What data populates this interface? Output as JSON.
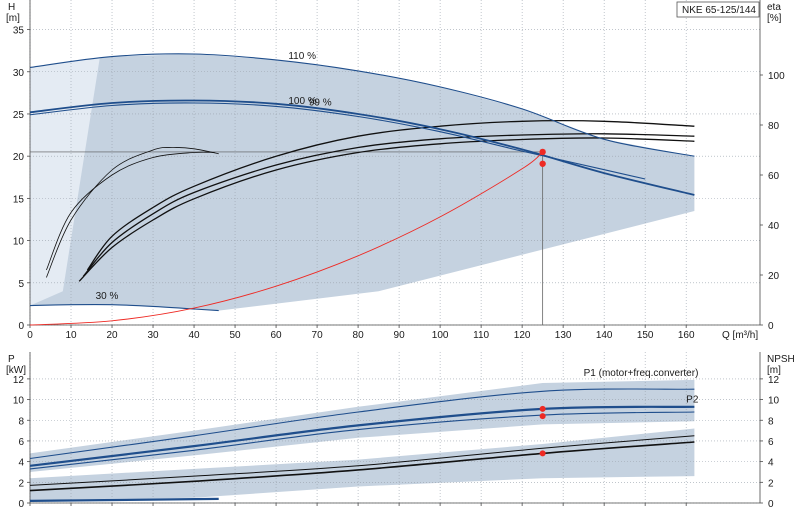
{
  "model_label": "NKE 65-125/144",
  "chart_data": [
    {
      "type": "line",
      "panel": "head-efficiency",
      "x_label": "Q [m³/h]",
      "y_label_left": [
        "H",
        "[m]"
      ],
      "y_label_right": [
        "eta",
        "[%]"
      ],
      "x_ticks": [
        0,
        10,
        20,
        30,
        40,
        50,
        60,
        70,
        80,
        90,
        100,
        110,
        120,
        130,
        140,
        150,
        160
      ],
      "y_left_ticks": [
        0,
        5,
        10,
        15,
        20,
        25,
        30,
        35
      ],
      "y_right_ticks": [
        0,
        20,
        40,
        60,
        80,
        100
      ],
      "xlim": [
        0,
        178
      ],
      "ylim_left": [
        0,
        38.5
      ],
      "ylim_right": [
        0,
        130
      ],
      "grid": true,
      "speed_labels": [
        {
          "text": "110 %",
          "x": 63,
          "y": 31.5
        },
        {
          "text": "100 %",
          "x": 63,
          "y": 26.2
        },
        {
          "text": "99 %",
          "x": 68,
          "y": 26.0
        },
        {
          "text": "30 %",
          "x": 16,
          "y": 3.1
        }
      ],
      "head_curves": [
        {
          "name": "110 %",
          "x": [
            0,
            20,
            40,
            60,
            80,
            100,
            120,
            140,
            162
          ],
          "y": [
            30.5,
            31.8,
            32.1,
            31.4,
            30.1,
            28.2,
            25.6,
            22.0,
            20.0
          ]
        },
        {
          "name": "100 %",
          "x": [
            0,
            20,
            40,
            60,
            80,
            100,
            120,
            140,
            162
          ],
          "y": [
            25.2,
            26.3,
            26.6,
            26.2,
            25.0,
            23.2,
            20.8,
            18.0,
            15.4
          ]
        },
        {
          "name": "99 %",
          "x": [
            0,
            20,
            40,
            60,
            80,
            100,
            120,
            140,
            150
          ],
          "y": [
            24.9,
            26.0,
            26.3,
            25.9,
            24.7,
            22.9,
            20.6,
            18.4,
            17.3
          ]
        },
        {
          "name": "30 %",
          "x": [
            0,
            10,
            20,
            30,
            40,
            46
          ],
          "y": [
            2.3,
            2.4,
            2.4,
            2.2,
            1.9,
            1.7
          ]
        }
      ],
      "efficiency_curves": [
        {
          "x": [
            12,
            20,
            30,
            40,
            60,
            80,
            100,
            120,
            140,
            162
          ],
          "y": [
            17.5,
            31.0,
            42.0,
            50.5,
            62.0,
            69.0,
            72.5,
            74.2,
            74.8,
            73.5
          ]
        },
        {
          "x": [
            13,
            20,
            30,
            40,
            60,
            80,
            100,
            120,
            140,
            162
          ],
          "y": [
            19.5,
            33.0,
            44.5,
            53.0,
            64.0,
            71.0,
            74.5,
            76.0,
            76.5,
            75.5
          ]
        },
        {
          "x": [
            14,
            20,
            30,
            40,
            60,
            80,
            100,
            120,
            140,
            162
          ],
          "y": [
            22.0,
            35.5,
            47.0,
            55.5,
            67.5,
            75.5,
            79.5,
            81.5,
            81.5,
            79.5
          ]
        },
        {
          "x": [
            4,
            10,
            20,
            30,
            35,
            40,
            46
          ],
          "y": [
            19.0,
            42.0,
            62.0,
            70.0,
            71.0,
            70.5,
            68.5
          ]
        },
        {
          "x": [
            4,
            10,
            20,
            30,
            40,
            45
          ],
          "y": [
            22.0,
            45.0,
            60.0,
            67.0,
            69.0,
            69.0
          ]
        }
      ],
      "system_curve": {
        "x": [
          0,
          20,
          40,
          60,
          80,
          100,
          120,
          125
        ],
        "y": [
          0,
          0.5,
          2.0,
          4.6,
          8.2,
          12.8,
          18.5,
          20.5
        ]
      },
      "operating_points": [
        {
          "x": 125,
          "y": 20.5
        },
        {
          "x": 125,
          "y": 19.1
        }
      ],
      "duty_guides": {
        "x": 125,
        "y": 20.5
      }
    },
    {
      "type": "line",
      "panel": "power-npsh",
      "y_label_left": [
        "P",
        "[kW]"
      ],
      "y_label_right": [
        "NPSH",
        "[m]"
      ],
      "x_ticks": [
        0,
        10,
        20,
        30,
        40,
        50,
        60,
        70,
        80,
        90,
        100,
        110,
        120,
        130,
        140,
        150,
        160
      ],
      "y_left_ticks": [
        0,
        2,
        4,
        6,
        8,
        10,
        12
      ],
      "y_right_ticks": [
        0,
        2,
        4,
        6,
        8,
        10,
        12
      ],
      "xlim": [
        0,
        178
      ],
      "ylim": [
        0,
        14.6
      ],
      "grid": true,
      "series_labels": [
        {
          "text": "P1 (motor+freq.converter)",
          "x": 135,
          "y": 12.3
        },
        {
          "text": "P2",
          "x": 160,
          "y": 9.7
        }
      ],
      "power_curves": [
        {
          "name": "P1 (motor+freq.converter)",
          "x": [
            0,
            40,
            80,
            125,
            162
          ],
          "y": [
            4.3,
            6.5,
            8.8,
            10.8,
            11.0
          ]
        },
        {
          "name": "P1 (motor+freq.converter)",
          "x": [
            0,
            40,
            80,
            125,
            162
          ],
          "y": [
            3.6,
            5.5,
            7.5,
            9.1,
            9.3
          ]
        },
        {
          "name": "P2",
          "x": [
            0,
            40,
            80,
            125,
            162
          ],
          "y": [
            3.3,
            5.1,
            7.1,
            8.5,
            8.8
          ]
        },
        {
          "name": "P2",
          "x": [
            0,
            46
          ],
          "y": [
            0.2,
            0.4
          ]
        }
      ],
      "npsh_curves": [
        {
          "x": [
            0,
            40,
            80,
            125,
            162
          ],
          "y": [
            1.7,
            2.6,
            3.6,
            5.3,
            6.5
          ]
        },
        {
          "x": [
            0,
            40,
            80,
            125,
            162
          ],
          "y": [
            1.2,
            2.1,
            3.2,
            4.8,
            5.9
          ]
        }
      ],
      "operating_points": [
        {
          "x": 125,
          "y": 9.1
        },
        {
          "x": 125,
          "y": 8.4
        },
        {
          "x": 125,
          "y": 4.8
        }
      ]
    }
  ]
}
